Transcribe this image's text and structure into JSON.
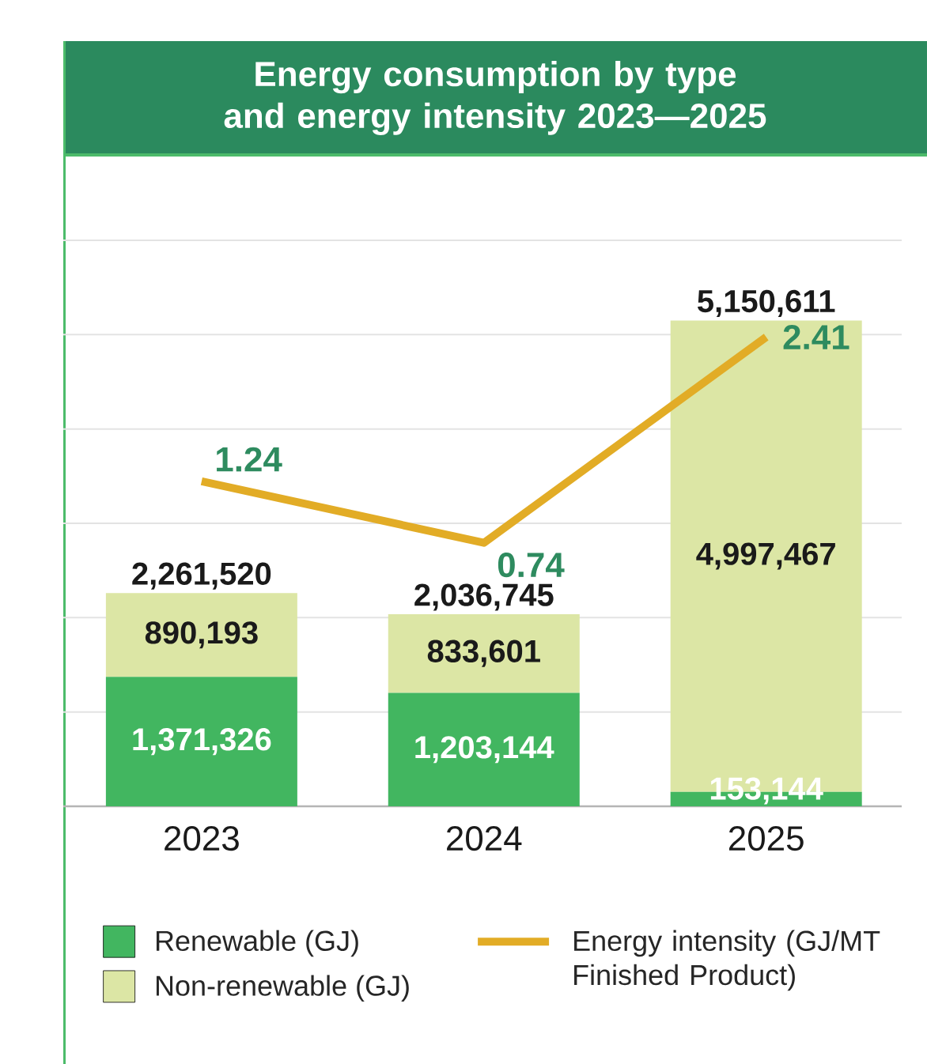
{
  "chart_data": {
    "type": "bar",
    "title": "Energy consumption by type and energy intensity 2023—2025",
    "categories": [
      "2023",
      "2024",
      "2025"
    ],
    "stacked": true,
    "series": [
      {
        "name": "Renewable (GJ)",
        "color": "#42b660",
        "values": [
          1371326,
          1203144,
          153144
        ],
        "value_labels": [
          "1,371,326",
          "1,203,144",
          "153,144"
        ]
      },
      {
        "name": "Non-renewable (GJ)",
        "color": "#dce6a5",
        "values": [
          890193,
          833601,
          4997467
        ],
        "value_labels": [
          "890,193",
          "833,601",
          "4,997,467"
        ]
      },
      {
        "name": "Energy intensity (GJ/MT Finished Product)",
        "type": "line",
        "axis": "y2",
        "color": "#e2ac26",
        "values": [
          1.24,
          0.74,
          2.41
        ],
        "value_labels": [
          "1.24",
          "0.74",
          "2.41"
        ]
      }
    ],
    "totals": [
      "2,261,520",
      "2,036,745",
      "5,150,611"
    ],
    "grid": "y",
    "tick_labels": "x",
    "legend": "bottom"
  }
}
